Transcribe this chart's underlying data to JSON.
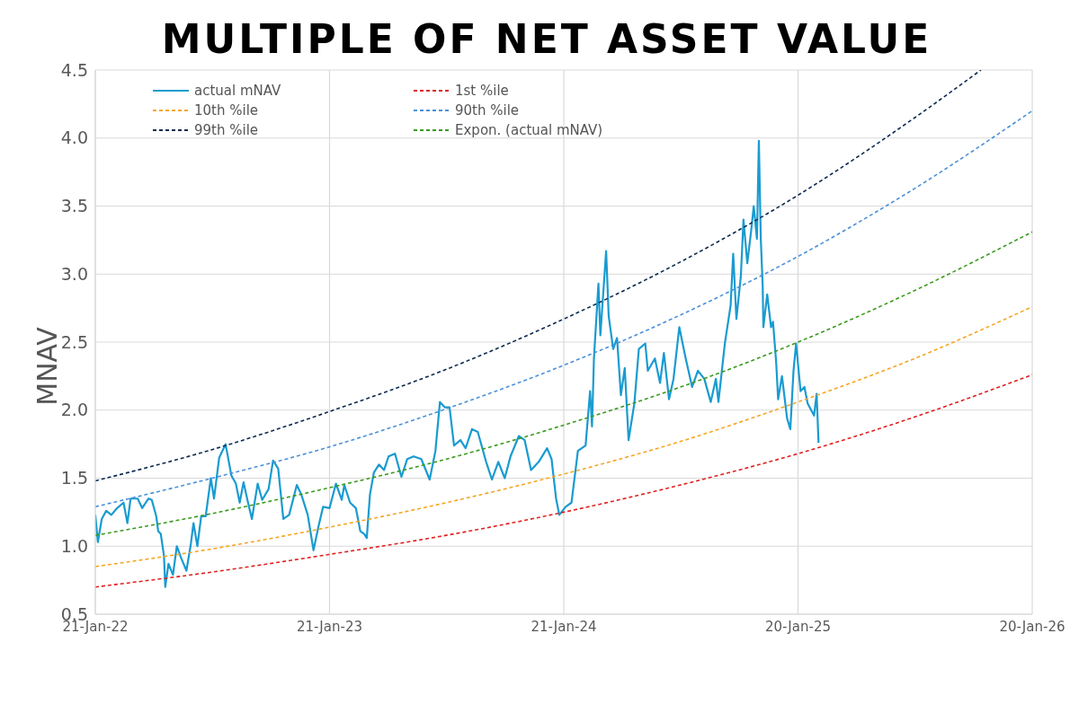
{
  "chart_data": {
    "type": "line",
    "title": "MULTIPLE OF NET ASSET VALUE",
    "ylabel": "MNAV",
    "xlim": [
      "2022-01-21",
      "2026-01-20"
    ],
    "xticks": [
      {
        "value": "2022-01-21",
        "label": "21-Jan-22"
      },
      {
        "value": "2023-01-21",
        "label": "21-Jan-23"
      },
      {
        "value": "2024-01-21",
        "label": "21-Jan-24"
      },
      {
        "value": "2025-01-20",
        "label": "20-Jan-25"
      },
      {
        "value": "2026-01-20",
        "label": "20-Jan-26"
      }
    ],
    "ylim": [
      0.5,
      4.5
    ],
    "yticks": [
      0.5,
      {
        "value": 1,
        "label": "1.0"
      },
      1.5,
      {
        "value": 2,
        "label": "2.0"
      },
      2.5,
      {
        "value": 3,
        "label": "3.0"
      },
      3.5,
      {
        "value": 4,
        "label": "4.0"
      },
      4.5
    ],
    "grid": true,
    "legend": "top left",
    "marker": "none",
    "series": [
      {
        "name": "actual mNAV",
        "color": "#1a9bd0",
        "line_style": "solid",
        "x": [
          "2022-01-21",
          "2022-01-25",
          "2022-01-31",
          "2022-02-07",
          "2022-02-15",
          "2022-02-24",
          "2022-03-06",
          "2022-03-12",
          "2022-03-17",
          "2022-03-28",
          "2022-04-04",
          "2022-04-14",
          "2022-04-19",
          "2022-04-26",
          "2022-04-29",
          "2022-05-03",
          "2022-05-08",
          "2022-05-10",
          "2022-05-15",
          "2022-05-22",
          "2022-05-28",
          "2022-06-04",
          "2022-06-12",
          "2022-06-19",
          "2022-06-23",
          "2022-06-29",
          "2022-07-05",
          "2022-07-12",
          "2022-07-20",
          "2022-07-25",
          "2022-08-02",
          "2022-08-12",
          "2022-08-21",
          "2022-08-28",
          "2022-09-03",
          "2022-09-09",
          "2022-09-15",
          "2022-09-22",
          "2022-10-01",
          "2022-10-08",
          "2022-10-18",
          "2022-10-25",
          "2022-11-02",
          "2022-11-10",
          "2022-11-19",
          "2022-12-01",
          "2022-12-08",
          "2022-12-18",
          "2022-12-27",
          "2023-01-04",
          "2023-01-11",
          "2023-01-21",
          "2023-01-31",
          "2023-02-09",
          "2023-02-13",
          "2023-02-22",
          "2023-03-03",
          "2023-03-10",
          "2023-03-16",
          "2023-03-20",
          "2023-03-25",
          "2023-03-31",
          "2023-04-08",
          "2023-04-16",
          "2023-04-23",
          "2023-05-03",
          "2023-05-13",
          "2023-05-22",
          "2023-06-01",
          "2023-06-13",
          "2023-06-26",
          "2023-07-05",
          "2023-07-12",
          "2023-07-20",
          "2023-07-27",
          "2023-08-03",
          "2023-08-13",
          "2023-08-21",
          "2023-08-31",
          "2023-09-09",
          "2023-09-22",
          "2023-10-01",
          "2023-10-11",
          "2023-10-21",
          "2023-10-30",
          "2023-11-12",
          "2023-11-21",
          "2023-12-01",
          "2023-12-13",
          "2023-12-26",
          "2024-01-02",
          "2024-01-09",
          "2024-01-14",
          "2024-01-24",
          "2024-02-02",
          "2024-02-12",
          "2024-02-24",
          "2024-03-02",
          "2024-03-05",
          "2024-03-08",
          "2024-03-15",
          "2024-03-18",
          "2024-03-27",
          "2024-03-31",
          "2024-04-07",
          "2024-04-13",
          "2024-04-19",
          "2024-04-25",
          "2024-05-01",
          "2024-05-10",
          "2024-05-17",
          "2024-05-27",
          "2024-05-31",
          "2024-06-11",
          "2024-06-19",
          "2024-06-25",
          "2024-07-03",
          "2024-07-10",
          "2024-07-19",
          "2024-07-29",
          "2024-08-08",
          "2024-08-17",
          "2024-08-27",
          "2024-09-06",
          "2024-09-14",
          "2024-09-18",
          "2024-09-28",
          "2024-10-07",
          "2024-10-11",
          "2024-10-16",
          "2024-10-23",
          "2024-10-27",
          "2024-11-02",
          "2024-11-08",
          "2024-11-12",
          "2024-11-17",
          "2024-11-20",
          "2024-11-23",
          "2024-11-26",
          "2024-11-27",
          "2024-12-03",
          "2024-12-09",
          "2024-12-12",
          "2024-12-17",
          "2024-12-20",
          "2024-12-26",
          "2025-01-03",
          "2025-01-08",
          "2025-01-13",
          "2025-01-17",
          "2025-01-24",
          "2025-01-30",
          "2025-02-04",
          "2025-02-14",
          "2025-02-18",
          "2025-02-21"
        ],
        "values": [
          1.23,
          1.03,
          1.2,
          1.26,
          1.23,
          1.28,
          1.32,
          1.17,
          1.35,
          1.35,
          1.28,
          1.35,
          1.34,
          1.22,
          1.11,
          1.09,
          0.93,
          0.7,
          0.87,
          0.79,
          1.0,
          0.91,
          0.82,
          1.02,
          1.17,
          1.0,
          1.22,
          1.22,
          1.5,
          1.35,
          1.65,
          1.75,
          1.52,
          1.46,
          1.32,
          1.47,
          1.34,
          1.2,
          1.46,
          1.34,
          1.42,
          1.63,
          1.57,
          1.2,
          1.23,
          1.45,
          1.38,
          1.23,
          0.97,
          1.15,
          1.29,
          1.28,
          1.46,
          1.34,
          1.45,
          1.32,
          1.28,
          1.11,
          1.09,
          1.06,
          1.38,
          1.54,
          1.6,
          1.56,
          1.66,
          1.68,
          1.51,
          1.64,
          1.66,
          1.64,
          1.49,
          1.7,
          2.06,
          2.02,
          2.02,
          1.74,
          1.78,
          1.72,
          1.86,
          1.84,
          1.62,
          1.49,
          1.62,
          1.5,
          1.66,
          1.81,
          1.78,
          1.56,
          1.62,
          1.72,
          1.64,
          1.35,
          1.23,
          1.29,
          1.32,
          1.7,
          1.74,
          2.14,
          1.88,
          2.38,
          2.93,
          2.55,
          3.17,
          2.69,
          2.45,
          2.53,
          2.11,
          2.31,
          1.78,
          2.05,
          2.45,
          2.49,
          2.29,
          2.38,
          2.2,
          2.42,
          2.08,
          2.23,
          2.61,
          2.38,
          2.17,
          2.29,
          2.23,
          2.06,
          2.23,
          2.06,
          2.49,
          2.77,
          3.15,
          2.67,
          2.99,
          3.4,
          3.08,
          3.32,
          3.5,
          3.26,
          3.98,
          3.26,
          2.91,
          2.61,
          2.85,
          2.61,
          2.65,
          2.35,
          2.08,
          2.25,
          1.94,
          1.86,
          2.29,
          2.49,
          2.14,
          2.17,
          2.05,
          1.96,
          2.12,
          1.76
        ]
      },
      {
        "name": "1st %ile",
        "color": "#e02020",
        "line_style": "dashed",
        "x": [
          "2022-01-21",
          "2022-07-22",
          "2023-01-21",
          "2023-07-22",
          "2024-01-21",
          "2024-07-21",
          "2025-01-20",
          "2025-07-21",
          "2026-01-20"
        ],
        "values": [
          0.7,
          0.81,
          0.94,
          1.08,
          1.25,
          1.45,
          1.68,
          1.95,
          2.26
        ]
      },
      {
        "name": "10th %ile",
        "color": "#f5a623",
        "line_style": "dashed",
        "x": [
          "2022-01-21",
          "2022-07-22",
          "2023-01-21",
          "2023-07-22",
          "2024-01-21",
          "2024-07-21",
          "2025-01-20",
          "2025-07-21",
          "2026-01-20"
        ],
        "values": [
          0.85,
          0.98,
          1.14,
          1.32,
          1.53,
          1.77,
          2.06,
          2.38,
          2.76
        ]
      },
      {
        "name": "90th %ile",
        "color": "#4a90d9",
        "line_style": "dashed",
        "x": [
          "2022-01-21",
          "2022-07-22",
          "2023-01-21",
          "2023-07-22",
          "2024-01-21",
          "2024-07-21",
          "2025-01-20",
          "2025-07-21",
          "2026-01-20"
        ],
        "values": [
          1.29,
          1.5,
          1.73,
          2.01,
          2.33,
          2.7,
          3.13,
          3.63,
          4.2
        ]
      },
      {
        "name": "99th %ile",
        "color": "#0d2a4e",
        "line_style": "dashed",
        "x": [
          "2022-01-21",
          "2022-07-22",
          "2023-01-21",
          "2023-07-22",
          "2024-01-21",
          "2024-07-21",
          "2025-01-20",
          "2025-07-21",
          "2025-11-01"
        ],
        "values": [
          1.48,
          1.71,
          1.99,
          2.3,
          2.67,
          3.09,
          3.58,
          4.15,
          4.5
        ]
      },
      {
        "name": "Expon. (actual mNAV)",
        "color": "#3a9a1e",
        "line_style": "dashed",
        "x": [
          "2022-01-21",
          "2022-07-22",
          "2023-01-21",
          "2023-07-22",
          "2024-01-21",
          "2024-07-21",
          "2025-01-20",
          "2025-07-21",
          "2026-01-20"
        ],
        "values": [
          1.08,
          1.24,
          1.43,
          1.64,
          1.89,
          2.17,
          2.5,
          2.88,
          3.31
        ]
      }
    ]
  }
}
